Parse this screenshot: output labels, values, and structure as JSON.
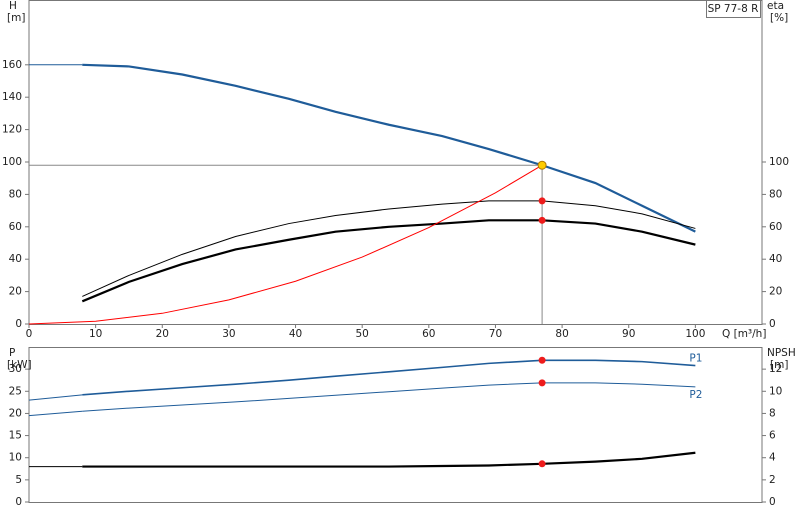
{
  "chart_data": [
    {
      "type": "line",
      "title": "SP 77-8 R",
      "x_label": "Q [m³/h]",
      "y_label": "H",
      "y_unit": "[m]",
      "y2_label": "eta",
      "y2_unit": "[%]",
      "xlim": [
        0,
        110
      ],
      "ylim": [
        0,
        200
      ],
      "y2lim": [
        0,
        200
      ],
      "xticks": [
        0,
        10,
        20,
        30,
        40,
        50,
        60,
        70,
        80,
        90,
        100
      ],
      "yticks": [
        0,
        20,
        40,
        60,
        80,
        100,
        120,
        140,
        160
      ],
      "y2ticks": [
        0,
        20,
        40,
        60,
        80,
        100
      ],
      "series": [
        {
          "color": "#1f5c99",
          "style": "thin",
          "x": [
            0,
            8
          ],
          "values": [
            160,
            160
          ]
        },
        {
          "color": "#1f5c99",
          "style": "thick",
          "x": [
            8,
            15,
            23,
            31,
            39,
            46,
            54,
            62,
            69,
            77,
            85,
            92,
            100
          ],
          "values": [
            160,
            159,
            154,
            147,
            139,
            131,
            123,
            116,
            108,
            98,
            87,
            73,
            57
          ]
        },
        {
          "color": "#000000",
          "style": "thin",
          "axis": "y2",
          "x": [
            8,
            15,
            23,
            31,
            39,
            46,
            54,
            62,
            69,
            77,
            85,
            92,
            100
          ],
          "values": [
            17,
            30,
            43,
            54,
            62,
            67,
            71,
            74,
            76,
            76,
            73,
            68,
            59
          ]
        },
        {
          "color": "#000000",
          "style": "thick",
          "axis": "y2",
          "x": [
            8,
            15,
            23,
            31,
            39,
            46,
            54,
            62,
            69,
            77,
            85,
            92,
            100
          ],
          "values": [
            14,
            26,
            37,
            46,
            52,
            57,
            60,
            62,
            64,
            64,
            62,
            57,
            49
          ]
        },
        {
          "color": "#ff0000",
          "style": "thin",
          "x": [
            0,
            10,
            20,
            30,
            40,
            50,
            60,
            70,
            77
          ],
          "values": [
            0,
            1.7,
            6.6,
            14.9,
            26.4,
            41.3,
            59.5,
            81,
            98
          ]
        }
      ],
      "duty_point": {
        "x": 77,
        "y": 98,
        "color": "#ffcc00"
      },
      "markers": [
        {
          "x": 77,
          "y": 76,
          "color": "#ee1c1c",
          "axis": "y2"
        },
        {
          "x": 77,
          "y": 64,
          "color": "#ee1c1c",
          "axis": "y2"
        }
      ]
    },
    {
      "type": "line",
      "y_label": "P",
      "y_unit": "[kW]",
      "y2_label": "NPSH",
      "y2_unit": "[m]",
      "xlim": [
        0,
        110
      ],
      "ylim": [
        0,
        35
      ],
      "y2lim": [
        0,
        14
      ],
      "yticks": [
        0,
        5,
        10,
        15,
        20,
        25,
        30
      ],
      "y2ticks": [
        0,
        2,
        4,
        6,
        8,
        10,
        12
      ],
      "series": [
        {
          "color": "#1f5c99",
          "style": "thin",
          "x": [
            0,
            8
          ],
          "values": [
            23,
            24.2
          ]
        },
        {
          "name": "P1",
          "label_position": "above",
          "color": "#1f5c99",
          "style": "medium",
          "x": [
            8,
            15,
            23,
            31,
            39,
            46,
            54,
            62,
            69,
            77,
            85,
            92,
            100
          ],
          "values": [
            24.2,
            25,
            25.8,
            26.6,
            27.5,
            28.4,
            29.4,
            30.4,
            31.3,
            32,
            32,
            31.7,
            30.8
          ]
        },
        {
          "color": "#1f5c99",
          "style": "thin",
          "x": [
            0,
            8
          ],
          "values": [
            19.5,
            20.5
          ]
        },
        {
          "name": "P2",
          "label_position": "below",
          "color": "#1f5c99",
          "style": "thin",
          "x": [
            8,
            15,
            23,
            31,
            39,
            46,
            54,
            62,
            69,
            77,
            85,
            92,
            100
          ],
          "values": [
            20.5,
            21.2,
            21.9,
            22.6,
            23.4,
            24.1,
            24.9,
            25.7,
            26.4,
            26.9,
            26.9,
            26.6,
            26
          ]
        },
        {
          "color": "#000000",
          "style": "thin",
          "axis": "y2",
          "x": [
            0,
            8
          ],
          "values": [
            3.2,
            3.2
          ]
        },
        {
          "color": "#000000",
          "style": "thick",
          "axis": "y2",
          "x": [
            8,
            15,
            23,
            31,
            39,
            46,
            54,
            62,
            69,
            77,
            85,
            92,
            100
          ],
          "values": [
            3.2,
            3.2,
            3.2,
            3.2,
            3.2,
            3.2,
            3.2,
            3.25,
            3.3,
            3.45,
            3.65,
            3.9,
            4.45
          ]
        }
      ],
      "markers": [
        {
          "x": 77,
          "y": 32,
          "color": "#ee1c1c"
        },
        {
          "x": 77,
          "y": 26.9,
          "color": "#ee1c1c"
        },
        {
          "x": 77,
          "y": 3.45,
          "color": "#ee1c1c",
          "axis": "y2"
        }
      ]
    }
  ]
}
